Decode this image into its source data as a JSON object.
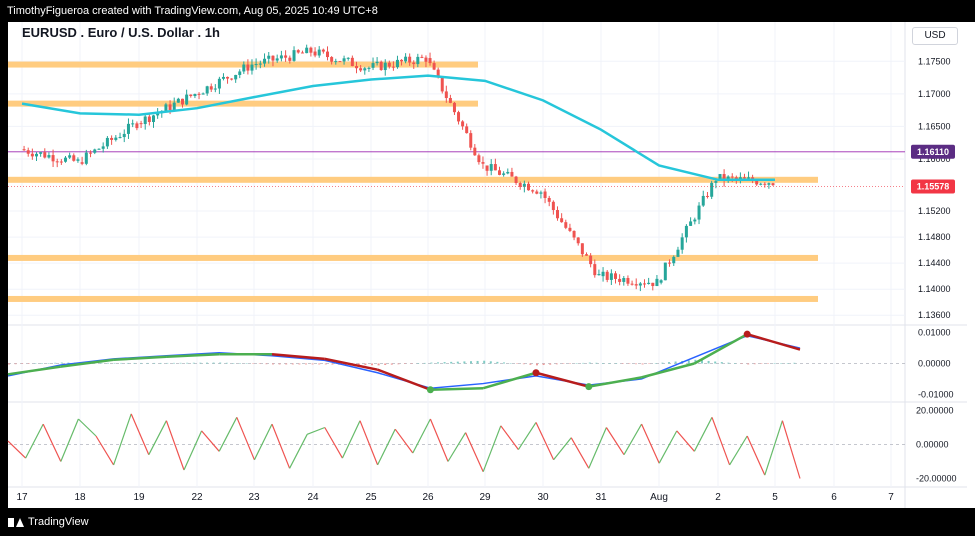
{
  "watermark": "TimothyFigueroa created with TradingView.com, Aug 05, 2025 10:49 UTC+8",
  "symbol_title": "EURUSD . Euro / U.S. Dollar . 1h",
  "currency_button": "USD",
  "footer_logo": "TradingView",
  "colors": {
    "bull": "#26a69a",
    "bear": "#ef5350",
    "ema": "#26c6da",
    "sr_zone": "#ffcc80",
    "last_price": "#f23645",
    "horizontal_line": "#9c27b0",
    "macd_fast": "#2962ff",
    "macd_green": "#4caf50",
    "macd_red": "#b71c1c",
    "osc_up": "#66bb6a",
    "osc_down": "#ef5350"
  },
  "chart_data": [
    {
      "type": "candlestick",
      "pane": "price",
      "title": "EURUSD . Euro / U.S. Dollar . 1h",
      "ylim": [
        1.1345,
        1.1795
      ],
      "x_tick_labels": [
        "17",
        "18",
        "19",
        "22",
        "23",
        "24",
        "25",
        "26",
        "29",
        "30",
        "31",
        "Aug",
        "2",
        "5",
        "6",
        "7"
      ],
      "y_tick_labels": [
        "1.17500",
        "1.17000",
        "1.16500",
        "1.16000",
        "1.15200",
        "1.14800",
        "1.14400",
        "1.14000",
        "1.13600"
      ],
      "price_path": [
        {
          "day": "17",
          "close": 1.1615
        },
        {
          "day": "18",
          "close": 1.1595
        },
        {
          "day": "19",
          "close": 1.1655
        },
        {
          "day": "22",
          "close": 1.17
        },
        {
          "day": "23",
          "close": 1.1745
        },
        {
          "day": "24",
          "close": 1.1765
        },
        {
          "day": "25",
          "close": 1.174
        },
        {
          "day": "26",
          "close": 1.1755
        },
        {
          "day": "29",
          "close": 1.159
        },
        {
          "day": "30",
          "close": 1.155
        },
        {
          "day": "31",
          "close": 1.142
        },
        {
          "day": "Aug",
          "close": 1.141
        },
        {
          "day": "2",
          "close": 1.157
        },
        {
          "day": "5",
          "close": 1.1565
        }
      ],
      "sr_zones": [
        1.1745,
        1.1685,
        1.1568,
        1.1448,
        1.1385
      ],
      "ema_path": [
        1.1685,
        1.167,
        1.1668,
        1.1678,
        1.1695,
        1.1712,
        1.1722,
        1.1728,
        1.172,
        1.169,
        1.1645,
        1.159,
        1.1568,
        1.1568
      ],
      "horizontal_line": {
        "value": 1.1611,
        "label": "1.16110"
      },
      "last_price": {
        "value": 1.15578,
        "label": "1.15578"
      }
    },
    {
      "type": "line",
      "pane": "macd",
      "ylim": [
        -0.0115,
        0.0115
      ],
      "y_tick_labels": [
        "0.01000",
        "0.00000",
        "-0.01000"
      ],
      "series": [
        {
          "values": [
            -0.004,
            -0.0005,
            0.0015,
            0.0025,
            0.0035,
            0.0025,
            0.001,
            -0.003,
            -0.008,
            -0.0065,
            -0.004,
            -0.007,
            -0.005,
            0.002,
            0.009,
            0.005
          ]
        },
        {
          "values": [
            -0.0035,
            -0.001,
            0.0012,
            0.0022,
            0.003,
            0.003,
            0.0015,
            -0.002,
            -0.0085,
            -0.008,
            -0.003,
            -0.0075,
            -0.0045,
            0.0,
            0.0095,
            0.0045
          ]
        }
      ]
    },
    {
      "type": "line",
      "pane": "oscillator",
      "ylim": [
        -25,
        25
      ],
      "y_tick_labels": [
        "20.00000",
        "0.00000",
        "-20.00000"
      ],
      "series": [
        {
          "values": [
            2,
            -8,
            12,
            -10,
            15,
            5,
            -12,
            18,
            -6,
            14,
            -15,
            8,
            -4,
            16,
            -9,
            12,
            -14,
            6,
            10,
            -8,
            14,
            -12,
            9,
            -5,
            15,
            -10,
            7,
            -16,
            11,
            -3,
            13,
            -9,
            4,
            -14,
            10,
            -6,
            12,
            -11,
            8,
            -4,
            16,
            -12,
            5,
            -18,
            14,
            -20
          ]
        }
      ]
    }
  ]
}
